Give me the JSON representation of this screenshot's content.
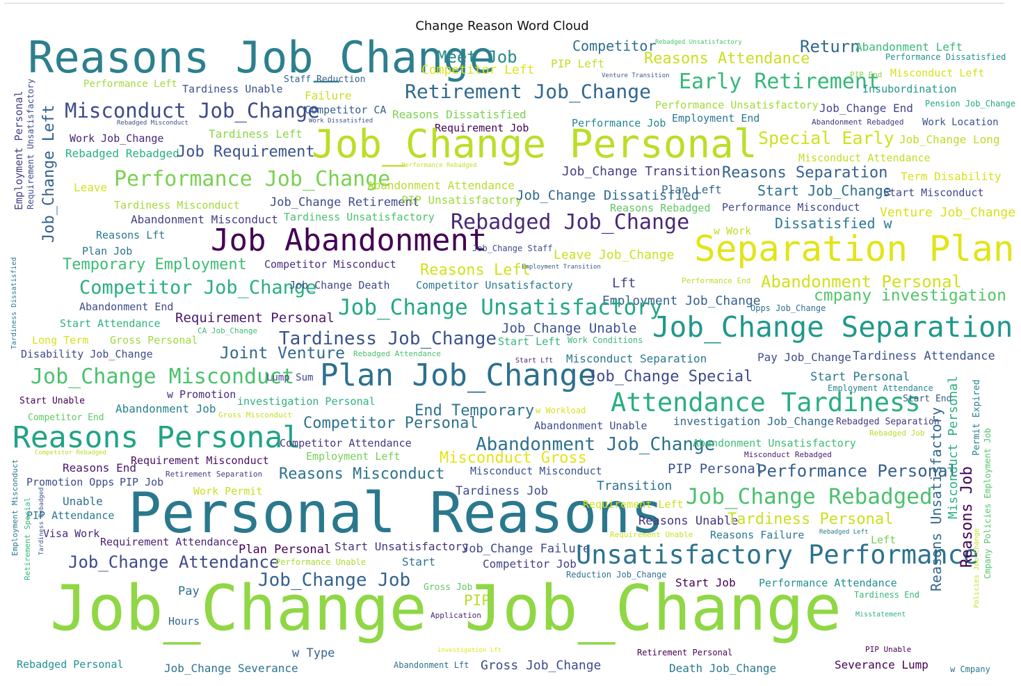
{
  "chart_data": {
    "type": "wordcloud",
    "title": "Change Reason Word Cloud",
    "colormap": "viridis",
    "words": [
      {
        "text": "Reasons Job_Change",
        "color": "#2c7f8e"
      },
      {
        "text": "Meet Job",
        "color": "#2a8a8a"
      },
      {
        "text": "Competitor Left",
        "color": "#dde318"
      },
      {
        "text": "Competitor",
        "color": "#2e6f8e"
      },
      {
        "text": "PIP Left",
        "color": "#c2df23"
      },
      {
        "text": "Rebadged Unsatisfactory",
        "color": "#4ac16d"
      },
      {
        "text": "Venture Transition",
        "color": "#3b528b"
      },
      {
        "text": "Reasons Attendance",
        "color": "#c8e020"
      },
      {
        "text": "Return",
        "color": "#31688e"
      },
      {
        "text": "Abandonment Left",
        "color": "#38b977"
      },
      {
        "text": "Performance Dissatisfied",
        "color": "#21918c"
      },
      {
        "text": "Performance Left",
        "color": "#9fda3a"
      },
      {
        "text": "Tardiness Unable",
        "color": "#3b528b"
      },
      {
        "text": "Staff Reduction",
        "color": "#33638d"
      },
      {
        "text": "Retirement Job_Change",
        "color": "#31688e"
      },
      {
        "text": "Early Retirement",
        "color": "#35b779"
      },
      {
        "text": "PIP End",
        "color": "#8bd646"
      },
      {
        "text": "Misconduct Left",
        "color": "#d5e21a"
      },
      {
        "text": "Insubordination",
        "color": "#1f988b"
      },
      {
        "text": "Failure",
        "color": "#c8e020"
      },
      {
        "text": "Misconduct Job_Change",
        "color": "#3e4a89"
      },
      {
        "text": "Competitor CA",
        "color": "#34618d"
      },
      {
        "text": "Work Dissatisfied",
        "color": "#39558c"
      },
      {
        "text": "Reasons Dissatisfied",
        "color": "#7ad151"
      },
      {
        "text": "Performance Unsatisfactory",
        "color": "#a2da37"
      },
      {
        "text": "Job_Change End",
        "color": "#3f4788"
      },
      {
        "text": "Pension Job_Change",
        "color": "#22a884"
      },
      {
        "text": "Rebadged Misconduct",
        "color": "#3d4e8a"
      },
      {
        "text": "Tardiness Left",
        "color": "#8bd646"
      },
      {
        "text": "Requirement Job",
        "color": "#440154"
      },
      {
        "text": "Performance Job",
        "color": "#24878e"
      },
      {
        "text": "Employment End",
        "color": "#2a778e"
      },
      {
        "text": "Abandonment Rebadged",
        "color": "#46337e"
      },
      {
        "text": "Work Location",
        "color": "#3b528b"
      },
      {
        "text": "Work Job_Change",
        "color": "#482475"
      },
      {
        "text": "Job_Change Personal",
        "color": "#bade28"
      },
      {
        "text": "Special Early",
        "color": "#d0e11c"
      },
      {
        "text": "Job_Change Long",
        "color": "#bade28"
      },
      {
        "text": "Rebadged Rebadged",
        "color": "#29af7f"
      },
      {
        "text": "Job Requirement",
        "color": "#3b528b"
      },
      {
        "text": "Performance Rebadged",
        "color": "#c2df23"
      },
      {
        "text": "Misconduct Attendance",
        "color": "#c0df25"
      },
      {
        "text": "Job_Change Transition",
        "color": "#433e85"
      },
      {
        "text": "Reasons Separation",
        "color": "#34618d"
      },
      {
        "text": "Term Disability",
        "color": "#d8e219"
      },
      {
        "text": "Leave",
        "color": "#d2e21b"
      },
      {
        "text": "Performance Job_Change",
        "color": "#7ad151"
      },
      {
        "text": "Abandonment Attendance",
        "color": "#b5de2b"
      },
      {
        "text": "Start Job_Change",
        "color": "#2e6e8e"
      },
      {
        "text": "Start Misconduct",
        "color": "#3e4989"
      },
      {
        "text": "Tardiness Misconduct",
        "color": "#a5db36"
      },
      {
        "text": "Job_Change Retirement",
        "color": "#3e4a89"
      },
      {
        "text": "PIP Unsatisfactory",
        "color": "#9bd93c"
      },
      {
        "text": "Job_Change Dissatisfied",
        "color": "#31688e"
      },
      {
        "text": "Plan Left",
        "color": "#31688e"
      },
      {
        "text": "Abandonment Misconduct",
        "color": "#433e85"
      },
      {
        "text": "Tardiness Unsatisfactory",
        "color": "#4ac16d"
      },
      {
        "text": "Reasons Rebadged",
        "color": "#5ec962"
      },
      {
        "text": "Performance Misconduct",
        "color": "#3e4a89"
      },
      {
        "text": "Venture Job_Change",
        "color": "#d8e219"
      },
      {
        "text": "Reasons Lft",
        "color": "#2a788e"
      },
      {
        "text": "Rebadged Job_Change",
        "color": "#482878"
      },
      {
        "text": "Dissatisfied w",
        "color": "#2a788e"
      },
      {
        "text": "w Work",
        "color": "#bddf26"
      },
      {
        "text": "Plan Job",
        "color": "#2c738e"
      },
      {
        "text": "Job Abandonment",
        "color": "#440154"
      },
      {
        "text": "Job_Change Staff",
        "color": "#3e4c8a"
      },
      {
        "text": "Leave Job_Change",
        "color": "#cae11f"
      },
      {
        "text": "Separation Plan",
        "color": "#e2e418"
      },
      {
        "text": "Temporary Employment",
        "color": "#3dbc74"
      },
      {
        "text": "Competitor Misconduct",
        "color": "#462f7c"
      },
      {
        "text": "Reasons Left",
        "color": "#d2e21b"
      },
      {
        "text": "Employment Transition",
        "color": "#375a8c"
      },
      {
        "text": "Competitor Job_Change",
        "color": "#29af7f"
      },
      {
        "text": "Job_Change Death",
        "color": "#3f4889"
      },
      {
        "text": "Competitor Unsatisfactory",
        "color": "#2a788e"
      },
      {
        "text": "Lft",
        "color": "#404588"
      },
      {
        "text": "Performance End",
        "color": "#bade28"
      },
      {
        "text": "Abandonment Personal",
        "color": "#d0e11c"
      },
      {
        "text": "Employment Job_Change",
        "color": "#34618d"
      },
      {
        "text": "cmpany investigation",
        "color": "#52c569"
      },
      {
        "text": "Opps Job_Change",
        "color": "#2e6f8e"
      },
      {
        "text": "Abandonment End",
        "color": "#3e4989"
      },
      {
        "text": "Requirement Personal",
        "color": "#48186a"
      },
      {
        "text": "Job_Change Unsatisfactory",
        "color": "#22a884"
      },
      {
        "text": "Job_Change Unable",
        "color": "#3b528b"
      },
      {
        "text": "Job_Change Separation",
        "color": "#1f988b"
      },
      {
        "text": "Start Attendance",
        "color": "#2db27d"
      },
      {
        "text": "CA Job_Change",
        "color": "#40bd72"
      },
      {
        "text": "Long Term",
        "color": "#d8e219"
      },
      {
        "text": "Gross Personal",
        "color": "#9fda3a"
      },
      {
        "text": "Tardiness Job_Change",
        "color": "#3b528b"
      },
      {
        "text": "Start Left",
        "color": "#35b779"
      },
      {
        "text": "Work Conditions",
        "color": "#3aba76"
      },
      {
        "text": "Disability Job_Change",
        "color": "#3e4a89"
      },
      {
        "text": "Joint Venture",
        "color": "#31688e"
      },
      {
        "text": "Rebadged Attendance",
        "color": "#4ac16d"
      },
      {
        "text": "Start Lft",
        "color": "#482173"
      },
      {
        "text": "Misconduct Separation",
        "color": "#2a788e"
      },
      {
        "text": "Pay Job_Change",
        "color": "#3e4c8a"
      },
      {
        "text": "Tardiness Attendance",
        "color": "#3b528b"
      },
      {
        "text": "Job_Change Misconduct",
        "color": "#4ac16d"
      },
      {
        "text": "Lump Sum",
        "color": "#3e4989"
      },
      {
        "text": "Plan Job_Change",
        "color": "#2d708e"
      },
      {
        "text": "Job_Change Special",
        "color": "#3e4989"
      },
      {
        "text": "Start Personal",
        "color": "#2a788e"
      },
      {
        "text": "Employment Attendance",
        "color": "#24868e"
      },
      {
        "text": "Start Unable",
        "color": "#440154"
      },
      {
        "text": "w Promotion",
        "color": "#482878"
      },
      {
        "text": "investigation Personal",
        "color": "#2db27d"
      },
      {
        "text": "End Temporary",
        "color": "#2c728e"
      },
      {
        "text": "w Workload",
        "color": "#d8e219"
      },
      {
        "text": "Attendance Tardiness",
        "color": "#29af7f"
      },
      {
        "text": "Start End",
        "color": "#38588c"
      },
      {
        "text": "Abandonment Job",
        "color": "#26828e"
      },
      {
        "text": "Gross Misconduct",
        "color": "#c2df23"
      },
      {
        "text": "Competitor End",
        "color": "#5ec962"
      },
      {
        "text": "Competitor Personal",
        "color": "#2c728e"
      },
      {
        "text": "Abandonment Unable",
        "color": "#3e4989"
      },
      {
        "text": "investigation Job_Change",
        "color": "#31688e"
      },
      {
        "text": "Rebadged Separation",
        "color": "#443983"
      },
      {
        "text": "Rebadged Job",
        "color": "#b5de2b"
      },
      {
        "text": "Reasons Personal",
        "color": "#20a386"
      },
      {
        "text": "Competitor Attendance",
        "color": "#453781"
      },
      {
        "text": "Abandonment Job_Change",
        "color": "#2d708e"
      },
      {
        "text": "Abandonment Unsatisfactory",
        "color": "#3dbc74"
      },
      {
        "text": "Competitor Rebadged",
        "color": "#b5de2b"
      },
      {
        "text": "Employment Left",
        "color": "#75d054"
      },
      {
        "text": "Misconduct Gross",
        "color": "#e2e418"
      },
      {
        "text": "Misconduct Rebadged",
        "color": "#481b6d"
      },
      {
        "text": "Reasons End",
        "color": "#481668"
      },
      {
        "text": "Requirement Misconduct",
        "color": "#471063"
      },
      {
        "text": "Retirement Separation",
        "color": "#453882"
      },
      {
        "text": "Reasons Misconduct",
        "color": "#2c728e"
      },
      {
        "text": "Misconduct Misconduct",
        "color": "#3b528b"
      },
      {
        "text": "PIP Personal",
        "color": "#3b528b"
      },
      {
        "text": "Performance Personal",
        "color": "#355f8d"
      },
      {
        "text": "Promotion Opps",
        "color": "#3e4a89"
      },
      {
        "text": "PIP Job",
        "color": "#3e4989"
      },
      {
        "text": "Work Permit",
        "color": "#c8e020"
      },
      {
        "text": "Tardiness Job",
        "color": "#3e4989"
      },
      {
        "text": "Transition",
        "color": "#2c728e"
      },
      {
        "text": "Unable",
        "color": "#2e6e8e"
      },
      {
        "text": "Personal Reasons",
        "color": "#2a788e"
      },
      {
        "text": "Requirement Left",
        "color": "#d0e11c"
      },
      {
        "text": "Job_Change Rebadged",
        "color": "#4ac16d"
      },
      {
        "text": "PIP Attendance",
        "color": "#2a788e"
      },
      {
        "text": "Reasons Unable",
        "color": "#46327e"
      },
      {
        "text": "Tardiness Personal",
        "color": "#cae11f"
      },
      {
        "text": "Visa Work",
        "color": "#482878"
      },
      {
        "text": "Requirement Unable",
        "color": "#c8e020"
      },
      {
        "text": "Reasons Failure",
        "color": "#2a788e"
      },
      {
        "text": "Rebadged Left",
        "color": "#2a778e"
      },
      {
        "text": "Left",
        "color": "#75d054"
      },
      {
        "text": "Requirement Attendance",
        "color": "#481f70"
      },
      {
        "text": "Plan Personal",
        "color": "#440154"
      },
      {
        "text": "Start Unsatisfactory",
        "color": "#46337e"
      },
      {
        "text": "Job_Change Failure",
        "color": "#3e4989"
      },
      {
        "text": "Unsatisfactory Performance",
        "color": "#2c728e"
      },
      {
        "text": "Job_Change Attendance",
        "color": "#3e4a89"
      },
      {
        "text": "Performance Unable",
        "color": "#aadc32"
      },
      {
        "text": "Start",
        "color": "#2c728e"
      },
      {
        "text": "Competitor Job",
        "color": "#433e85"
      },
      {
        "text": "Reduction Job_Change",
        "color": "#2e6e8e"
      },
      {
        "text": "Start Job",
        "color": "#440154"
      },
      {
        "text": "Performance Attendance",
        "color": "#21908d"
      },
      {
        "text": "Job_Change Job",
        "color": "#34618d"
      },
      {
        "text": "Gross Job",
        "color": "#5ec962"
      },
      {
        "text": "Pay",
        "color": "#2e6e8e"
      },
      {
        "text": "PIP",
        "color": "#bade28"
      },
      {
        "text": "Application",
        "color": "#482475"
      },
      {
        "text": "Tardiness End",
        "color": "#35b779"
      },
      {
        "text": "Hours",
        "color": "#31688e"
      },
      {
        "text": "Misstatement",
        "color": "#2db27d"
      },
      {
        "text": "Job_Change Job_Change",
        "color": "#8fd744"
      },
      {
        "text": "w Type",
        "color": "#34618d"
      },
      {
        "text": "investigation Lft",
        "color": "#e2e418"
      },
      {
        "text": "Retirement Personal",
        "color": "#440154"
      },
      {
        "text": "PIP Unable",
        "color": "#440154"
      },
      {
        "text": "Rebadged Personal",
        "color": "#21918c"
      },
      {
        "text": "Job_Change Severance",
        "color": "#2c728e"
      },
      {
        "text": "Abandonment Lft",
        "color": "#2d708e"
      },
      {
        "text": "Gross Job_Change",
        "color": "#3e4a89"
      },
      {
        "text": "Death Job_Change",
        "color": "#2a788e"
      },
      {
        "text": "Severance Lump",
        "color": "#440154"
      },
      {
        "text": "w Cmpany",
        "color": "#2a788e"
      },
      {
        "text": "Employment Personal",
        "color": "#433e85"
      },
      {
        "text": "Requirement Unsatisfactory",
        "color": "#3e4989"
      },
      {
        "text": "Job_Change Left",
        "color": "#34618d"
      },
      {
        "text": "Tardiness Dissatisfied",
        "color": "#2a788e"
      },
      {
        "text": "Employment Misconduct",
        "color": "#2a788e"
      },
      {
        "text": "Retirement Special",
        "color": "#35b779"
      },
      {
        "text": "Tardiness Rebadged",
        "color": "#39558c"
      },
      {
        "text": "Reasons Unsatisfactory",
        "color": "#31688e"
      },
      {
        "text": "Misconduct Personal",
        "color": "#29af7f"
      },
      {
        "text": "Reasons Job",
        "color": "#440154"
      },
      {
        "text": "Policies Job_Change",
        "color": "#c8e020"
      },
      {
        "text": "Permit Expired",
        "color": "#26828e"
      },
      {
        "text": "Cmpany Policies Employment Job",
        "color": "#52c569"
      }
    ]
  }
}
